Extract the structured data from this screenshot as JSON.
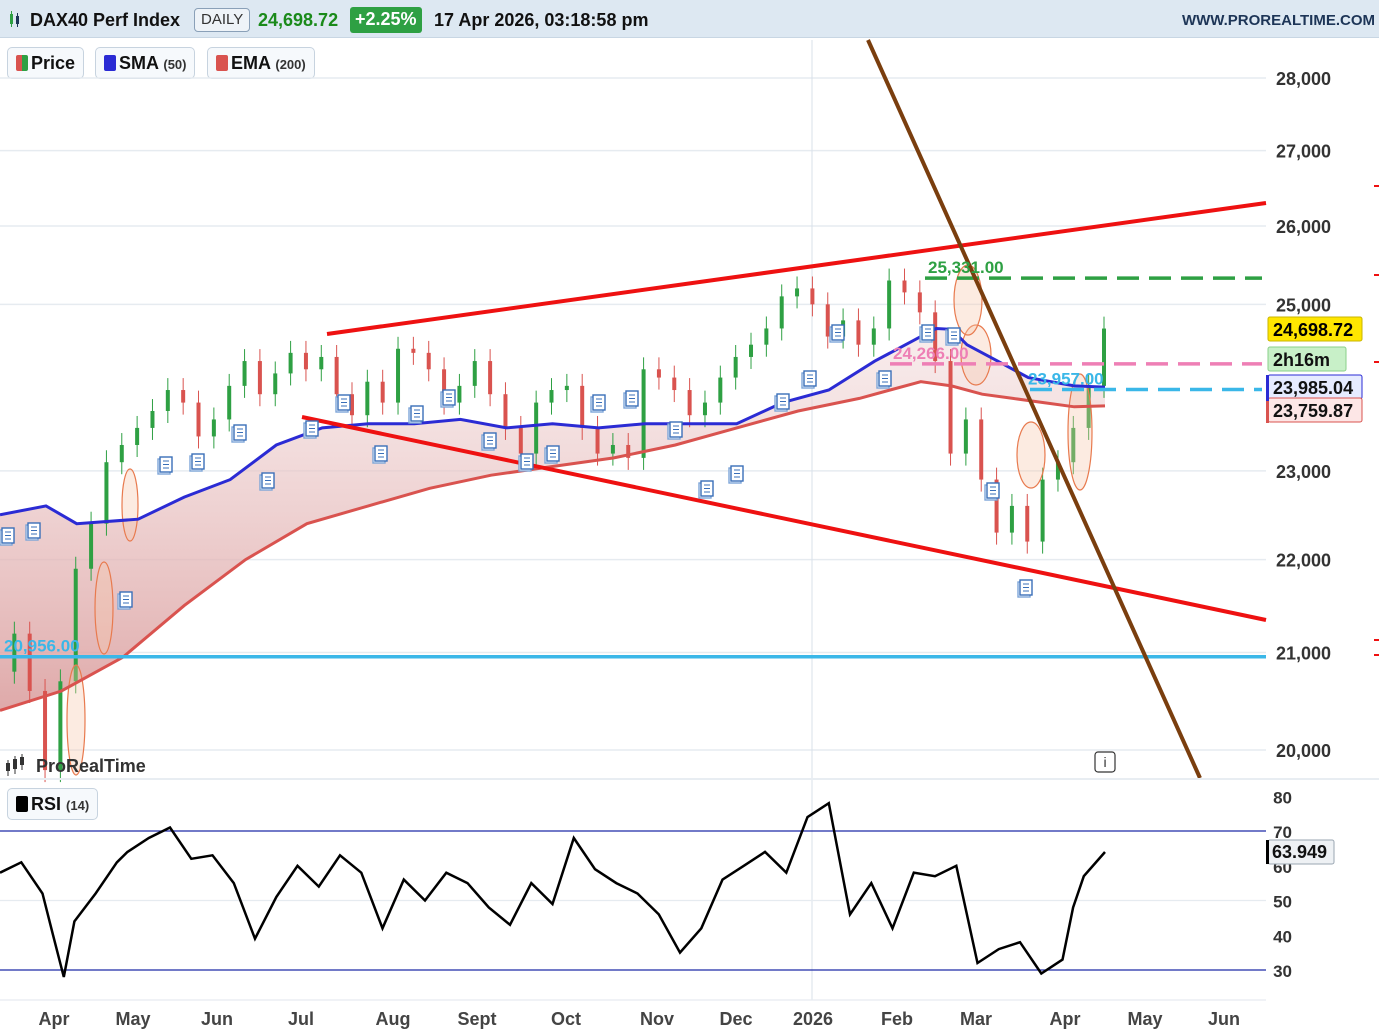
{
  "header": {
    "instrument": "DAX40 Perf Index",
    "timeframe": "DAILY",
    "last_price": "24,698.72",
    "change": "+2.25%",
    "datetime": "17 Apr 2026, 03:18:58 pm",
    "website": "WWW.PROREALTIME.COM"
  },
  "legend": {
    "price": "Price",
    "sma": "SMA",
    "sma_period": "(50)",
    "ema": "EMA",
    "ema_period": "(200)"
  },
  "rsi_legend": {
    "label": "RSI",
    "period": "(14)"
  },
  "watermark": "ProRealTime",
  "info_icon": "i",
  "colors": {
    "sma": "#2b2bd4",
    "ema": "#d9534f",
    "channel": "#ee1111",
    "trend": "#7a3e0e",
    "support": "#3ab7e8",
    "resistance": "#2ea043",
    "pink_level": "#ee7fb5",
    "bull": "#2ea043",
    "bear": "#d9534f"
  },
  "chart_data": [
    {
      "type": "line",
      "pane": "price",
      "x_labels": [
        "Apr",
        "May",
        "Jun",
        "Jul",
        "Aug",
        "Sept",
        "Oct",
        "Nov",
        "Dec",
        "2026",
        "Feb",
        "Mar",
        "Apr",
        "May",
        "Jun"
      ],
      "y_ticks": [
        "28,000",
        "27,000",
        "26,000",
        "25,000",
        "23,000",
        "22,000",
        "21,000",
        "20,000"
      ],
      "y_tick_values": [
        28000,
        27000,
        26000,
        25000,
        23000,
        22000,
        21000,
        20000
      ],
      "price_series": [
        [
          0,
          20800
        ],
        [
          1,
          21200
        ],
        [
          2,
          20600
        ],
        [
          3,
          19800
        ],
        [
          4,
          20700
        ],
        [
          5,
          21900
        ],
        [
          6,
          22400
        ],
        [
          7,
          23100
        ],
        [
          8,
          23300
        ],
        [
          9,
          23500
        ],
        [
          10,
          23700
        ],
        [
          11,
          23950
        ],
        [
          12,
          23800
        ],
        [
          13,
          23400
        ],
        [
          14,
          23600
        ],
        [
          15,
          24000
        ],
        [
          16,
          24300
        ],
        [
          17,
          23900
        ],
        [
          18,
          24150
        ],
        [
          19,
          24400
        ],
        [
          20,
          24200
        ],
        [
          21,
          24350
        ],
        [
          22,
          23900
        ],
        [
          23,
          23650
        ],
        [
          24,
          24050
        ],
        [
          25,
          23800
        ],
        [
          26,
          24450
        ],
        [
          27,
          24400
        ],
        [
          28,
          24200
        ],
        [
          29,
          23800
        ],
        [
          30,
          24000
        ],
        [
          31,
          24300
        ],
        [
          32,
          23900
        ],
        [
          33,
          23500
        ],
        [
          34,
          23200
        ],
        [
          35,
          23800
        ],
        [
          36,
          23950
        ],
        [
          37,
          24000
        ],
        [
          38,
          23500
        ],
        [
          39,
          23200
        ],
        [
          40,
          23300
        ],
        [
          41,
          23150
        ],
        [
          42,
          24200
        ],
        [
          43,
          24100
        ],
        [
          44,
          23950
        ],
        [
          45,
          23650
        ],
        [
          46,
          23800
        ],
        [
          47,
          24100
        ],
        [
          48,
          24350
        ],
        [
          49,
          24500
        ],
        [
          50,
          24700
        ],
        [
          51,
          25100
        ],
        [
          52,
          25200
        ],
        [
          53,
          25000
        ],
        [
          54,
          24600
        ],
        [
          55,
          24800
        ],
        [
          56,
          24500
        ],
        [
          57,
          24700
        ],
        [
          58,
          25300
        ],
        [
          59,
          25150
        ],
        [
          60,
          24900
        ],
        [
          61,
          24300
        ],
        [
          62,
          23200
        ],
        [
          63,
          23600
        ],
        [
          64,
          22900
        ],
        [
          65,
          22300
        ],
        [
          66,
          22600
        ],
        [
          67,
          22200
        ],
        [
          68,
          22900
        ],
        [
          69,
          23100
        ],
        [
          70,
          23500
        ],
        [
          71,
          24000
        ],
        [
          72,
          24698.72
        ]
      ],
      "sma50": {
        "name": "SMA",
        "period": 50,
        "last_value": "23,985.04",
        "values": [
          [
            0,
            22500
          ],
          [
            3,
            22600
          ],
          [
            5,
            22400
          ],
          [
            9,
            22450
          ],
          [
            12,
            22700
          ],
          [
            15,
            22900
          ],
          [
            18,
            23300
          ],
          [
            21,
            23500
          ],
          [
            24,
            23550
          ],
          [
            27,
            23550
          ],
          [
            30,
            23600
          ],
          [
            33,
            23500
          ],
          [
            36,
            23550
          ],
          [
            39,
            23500
          ],
          [
            42,
            23550
          ],
          [
            45,
            23550
          ],
          [
            48,
            23550
          ],
          [
            51,
            23800
          ],
          [
            54,
            23950
          ],
          [
            57,
            24300
          ],
          [
            60,
            24600
          ],
          [
            61,
            24700
          ],
          [
            62,
            24690
          ],
          [
            63,
            24500
          ],
          [
            65,
            24300
          ],
          [
            67,
            24100
          ],
          [
            70,
            24000
          ],
          [
            72,
            23985
          ]
        ]
      },
      "ema200": {
        "name": "EMA",
        "period": 200,
        "last_value": "23,759.87",
        "values": [
          [
            0,
            20400
          ],
          [
            4,
            20600
          ],
          [
            8,
            20950
          ],
          [
            12,
            21500
          ],
          [
            16,
            22000
          ],
          [
            20,
            22400
          ],
          [
            24,
            22600
          ],
          [
            28,
            22800
          ],
          [
            32,
            22950
          ],
          [
            36,
            23050
          ],
          [
            40,
            23150
          ],
          [
            44,
            23300
          ],
          [
            48,
            23500
          ],
          [
            52,
            23700
          ],
          [
            56,
            23850
          ],
          [
            58,
            23950
          ],
          [
            60,
            24050
          ],
          [
            62,
            24000
          ],
          [
            64,
            23900
          ],
          [
            66,
            23850
          ],
          [
            68,
            23800
          ],
          [
            70,
            23750
          ],
          [
            72,
            23760
          ]
        ]
      },
      "levels": [
        {
          "value": 25331,
          "label": "25,331.00",
          "style": "dashed",
          "color_key": "resistance"
        },
        {
          "value": 24266,
          "label": "24,266.00",
          "style": "dashed",
          "color_key": "pink_level"
        },
        {
          "value": 23957,
          "label": "23,957.00",
          "style": "dashed",
          "color_key": "support"
        },
        {
          "value": 20956,
          "label": "20,956.00",
          "style": "solid",
          "color_key": "support"
        }
      ],
      "right_labels": [
        {
          "text": "24,698.72",
          "kind": "price"
        },
        {
          "text": "2h16m",
          "kind": "countdown"
        },
        {
          "text": "23,985.04",
          "kind": "sma"
        },
        {
          "text": "23,759.87",
          "kind": "ema"
        }
      ]
    },
    {
      "type": "line",
      "pane": "rsi",
      "name": "RSI",
      "period": 14,
      "last_value": "63.949",
      "y_ticks": [
        "80",
        "70",
        "60",
        "50",
        "40",
        "30"
      ],
      "y_tick_values": [
        80,
        70,
        60,
        50,
        40,
        30
      ],
      "upper": 70,
      "lower": 30,
      "values": [
        [
          0,
          58
        ],
        [
          2,
          61
        ],
        [
          4,
          52
        ],
        [
          5,
          40
        ],
        [
          6,
          28
        ],
        [
          7,
          44
        ],
        [
          9,
          52
        ],
        [
          11,
          61
        ],
        [
          12,
          64
        ],
        [
          14,
          68
        ],
        [
          16,
          71
        ],
        [
          18,
          62
        ],
        [
          20,
          63
        ],
        [
          22,
          55
        ],
        [
          24,
          39
        ],
        [
          26,
          51
        ],
        [
          28,
          60
        ],
        [
          30,
          54
        ],
        [
          32,
          63
        ],
        [
          34,
          58
        ],
        [
          36,
          42
        ],
        [
          38,
          56
        ],
        [
          40,
          50
        ],
        [
          42,
          58
        ],
        [
          44,
          55
        ],
        [
          46,
          48
        ],
        [
          48,
          43
        ],
        [
          50,
          55
        ],
        [
          52,
          49
        ],
        [
          54,
          68
        ],
        [
          56,
          59
        ],
        [
          58,
          55
        ],
        [
          60,
          52
        ],
        [
          62,
          46
        ],
        [
          64,
          35
        ],
        [
          66,
          42
        ],
        [
          68,
          56
        ],
        [
          70,
          60
        ],
        [
          72,
          64
        ],
        [
          74,
          58
        ],
        [
          76,
          74
        ],
        [
          78,
          78
        ],
        [
          80,
          46
        ],
        [
          82,
          55
        ],
        [
          84,
          42
        ],
        [
          86,
          58
        ],
        [
          88,
          57
        ],
        [
          90,
          60
        ],
        [
          92,
          32
        ],
        [
          94,
          36
        ],
        [
          96,
          38
        ],
        [
          98,
          29
        ],
        [
          100,
          33
        ],
        [
          101,
          48
        ],
        [
          102,
          57
        ],
        [
          104,
          63.949
        ]
      ]
    }
  ]
}
